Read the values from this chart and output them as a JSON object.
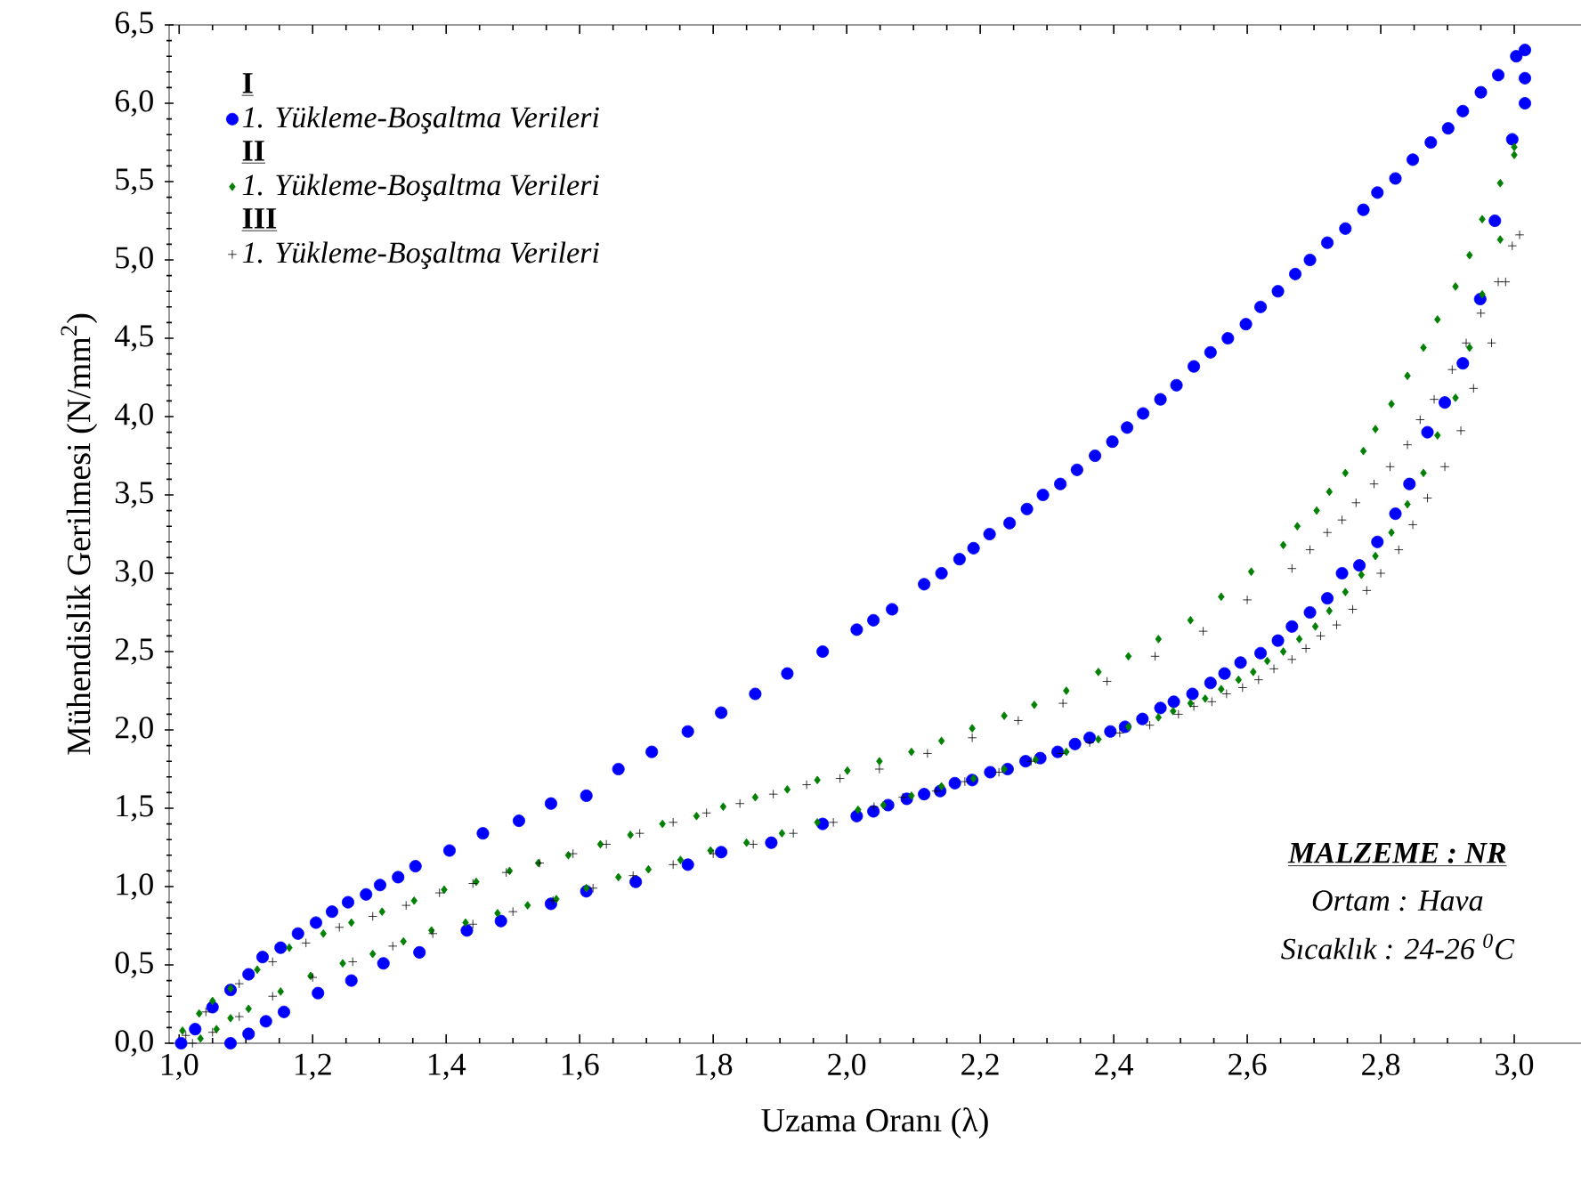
{
  "chart_data": {
    "type": "scatter",
    "xlabel": "Uzama Oranı (λ)",
    "ylabel": "Mühendislik Gerilmesi (N/mm$^{2}$)",
    "xlim": [
      0.985,
      3.1
    ],
    "ylim": [
      0,
      6.5
    ],
    "xticks": [
      {
        "value": 1.0,
        "label": "1,0"
      },
      {
        "value": 1.2,
        "label": "1,2"
      },
      {
        "value": 1.4,
        "label": "1,4"
      },
      {
        "value": 1.6,
        "label": "1,6"
      },
      {
        "value": 1.8,
        "label": "1,8"
      },
      {
        "value": 2.0,
        "label": "2,0"
      },
      {
        "value": 2.2,
        "label": "2,2"
      },
      {
        "value": 2.4,
        "label": "2,4"
      },
      {
        "value": 2.6,
        "label": "2,6"
      },
      {
        "value": 2.8,
        "label": "2,8"
      },
      {
        "value": 3.0,
        "label": "3,0"
      }
    ],
    "yticks": [
      {
        "value": 0,
        "label": "0,0"
      },
      {
        "value": 0.5,
        "label": "0,5"
      },
      {
        "value": 1.0,
        "label": "1,0"
      },
      {
        "value": 1.5,
        "label": "1,5"
      },
      {
        "value": 2.0,
        "label": "2,0"
      },
      {
        "value": 2.5,
        "label": "2,5"
      },
      {
        "value": 3.0,
        "label": "3,0"
      },
      {
        "value": 3.5,
        "label": "3,5"
      },
      {
        "value": 4.0,
        "label": "4,0"
      },
      {
        "value": 4.5,
        "label": "4,5"
      },
      {
        "value": 5.0,
        "label": "5,0"
      },
      {
        "value": 5.5,
        "label": "5,5"
      },
      {
        "value": 6.0,
        "label": "6,0"
      },
      {
        "value": 6.5,
        "label": "6,5"
      }
    ],
    "legend": "top left",
    "annotations": [
      "I",
      "II",
      "III",
      "MALZEME : NR",
      "Ortam : Hava",
      "Sıcaklık : 24-26 $^{0}$C"
    ],
    "series": [
      {
        "name": "1. Yükleme-Boşaltma Verileri",
        "color": "#0000ff",
        "marker": "circle",
        "x": [
          1.003,
          1.024,
          1.05,
          1.077,
          1.104,
          1.125,
          1.152,
          1.178,
          1.205,
          1.229,
          1.253,
          1.28,
          1.301,
          1.328,
          1.354,
          1.405,
          1.455,
          1.509,
          1.557,
          1.61,
          1.658,
          1.708,
          1.762,
          1.812,
          1.863,
          1.911,
          1.964,
          2.015,
          2.04,
          2.068,
          2.116,
          2.142,
          2.169,
          2.19,
          2.214,
          2.244,
          2.27,
          2.294,
          2.32,
          2.345,
          2.372,
          2.398,
          2.42,
          2.444,
          2.47,
          2.494,
          2.52,
          2.545,
          2.571,
          2.598,
          2.62,
          2.646,
          2.672,
          2.694,
          2.72,
          2.747,
          2.774,
          2.795,
          2.822,
          2.848,
          2.875,
          2.901,
          2.923,
          2.95,
          2.976,
          3.003,
          3.016,
          3.016,
          3.016,
          2.997,
          2.971,
          2.949,
          2.923,
          2.896,
          2.87,
          2.843,
          2.822,
          2.795,
          2.768,
          2.742,
          2.72,
          2.694,
          2.667,
          2.646,
          2.62,
          2.59,
          2.566,
          2.545,
          2.518,
          2.49,
          2.47,
          2.443,
          2.417,
          2.395,
          2.364,
          2.342,
          2.316,
          2.29,
          2.268,
          2.241,
          2.215,
          2.188,
          2.162,
          2.14,
          2.116,
          2.09,
          2.062,
          2.04,
          2.015,
          1.964,
          1.887,
          1.812,
          1.762,
          1.684,
          1.61,
          1.557,
          1.482,
          1.431,
          1.36,
          1.306,
          1.258,
          1.208,
          1.157,
          1.13,
          1.104,
          1.077
        ],
        "values": [
          0,
          0.09,
          0.23,
          0.34,
          0.44,
          0.55,
          0.61,
          0.7,
          0.77,
          0.84,
          0.9,
          0.95,
          1.01,
          1.06,
          1.13,
          1.23,
          1.34,
          1.42,
          1.53,
          1.58,
          1.75,
          1.86,
          1.99,
          2.11,
          2.23,
          2.36,
          2.5,
          2.64,
          2.7,
          2.77,
          2.93,
          3.0,
          3.09,
          3.16,
          3.25,
          3.32,
          3.41,
          3.5,
          3.57,
          3.66,
          3.75,
          3.84,
          3.93,
          4.02,
          4.11,
          4.2,
          4.32,
          4.41,
          4.5,
          4.59,
          4.7,
          4.8,
          4.91,
          5.0,
          5.11,
          5.2,
          5.32,
          5.43,
          5.52,
          5.64,
          5.75,
          5.84,
          5.95,
          6.07,
          6.18,
          6.3,
          6.34,
          6.16,
          6.0,
          5.77,
          5.25,
          4.75,
          4.34,
          4.09,
          3.9,
          3.57,
          3.38,
          3.2,
          3.05,
          3.0,
          2.84,
          2.75,
          2.66,
          2.57,
          2.49,
          2.43,
          2.36,
          2.3,
          2.23,
          2.18,
          2.14,
          2.07,
          2.02,
          1.99,
          1.95,
          1.91,
          1.86,
          1.82,
          1.8,
          1.75,
          1.73,
          1.68,
          1.66,
          1.61,
          1.59,
          1.56,
          1.52,
          1.48,
          1.45,
          1.4,
          1.28,
          1.22,
          1.14,
          1.03,
          0.97,
          0.89,
          0.78,
          0.72,
          0.58,
          0.51,
          0.4,
          0.32,
          0.2,
          0.14,
          0.06,
          0
        ]
      },
      {
        "name": "1. Yükleme-Boşaltma Verileri",
        "color": "#008000",
        "marker": "diamond",
        "x": [
          1.005,
          1.03,
          1.05,
          1.077,
          1.117,
          1.165,
          1.216,
          1.258,
          1.304,
          1.352,
          1.397,
          1.445,
          1.495,
          1.538,
          1.583,
          1.631,
          1.676,
          1.724,
          1.775,
          1.815,
          1.863,
          1.911,
          1.956,
          2.001,
          2.049,
          2.097,
          2.142,
          2.188,
          2.236,
          2.281,
          2.329,
          2.377,
          2.422,
          2.467,
          2.515,
          2.561,
          2.606,
          2.654,
          2.675,
          2.704,
          2.723,
          2.747,
          2.774,
          2.792,
          2.816,
          2.84,
          2.864,
          2.885,
          2.912,
          2.933,
          2.952,
          2.979,
          3.0,
          3.0,
          2.979,
          2.952,
          2.933,
          2.912,
          2.885,
          2.864,
          2.84,
          2.816,
          2.792,
          2.771,
          2.747,
          2.723,
          2.702,
          2.678,
          2.654,
          2.63,
          2.609,
          2.587,
          2.561,
          2.537,
          2.515,
          2.489,
          2.467,
          2.422,
          2.377,
          2.329,
          2.283,
          2.236,
          2.19,
          2.142,
          2.097,
          2.055,
          2.017,
          1.956,
          1.903,
          1.85,
          1.796,
          1.751,
          1.703,
          1.658,
          1.61,
          1.565,
          1.522,
          1.477,
          1.429,
          1.378,
          1.336,
          1.29,
          1.245,
          1.197,
          1.152,
          1.104,
          1.077,
          1.056,
          1.032
        ],
        "values": [
          0.08,
          0.19,
          0.27,
          0.35,
          0.47,
          0.61,
          0.7,
          0.77,
          0.84,
          0.91,
          0.98,
          1.03,
          1.1,
          1.15,
          1.2,
          1.27,
          1.33,
          1.4,
          1.45,
          1.51,
          1.57,
          1.62,
          1.68,
          1.74,
          1.8,
          1.86,
          1.93,
          2.01,
          2.09,
          2.16,
          2.25,
          2.37,
          2.47,
          2.58,
          2.7,
          2.85,
          3.01,
          3.18,
          3.3,
          3.4,
          3.52,
          3.64,
          3.78,
          3.92,
          4.08,
          4.26,
          4.44,
          4.62,
          4.83,
          5.03,
          5.26,
          5.49,
          5.67,
          5.72,
          5.13,
          4.78,
          4.44,
          4.12,
          3.88,
          3.64,
          3.44,
          3.26,
          3.11,
          2.99,
          2.88,
          2.76,
          2.66,
          2.58,
          2.5,
          2.44,
          2.37,
          2.32,
          2.26,
          2.2,
          2.17,
          2.12,
          2.08,
          2.02,
          1.94,
          1.86,
          1.81,
          1.75,
          1.69,
          1.64,
          1.58,
          1.52,
          1.49,
          1.41,
          1.34,
          1.28,
          1.23,
          1.17,
          1.11,
          1.06,
          0.99,
          0.92,
          0.88,
          0.83,
          0.77,
          0.72,
          0.65,
          0.57,
          0.51,
          0.43,
          0.33,
          0.22,
          0.16,
          0.09,
          0.03
        ]
      },
      {
        "name": "1. Yükleme-Boşaltma Verileri",
        "color": "#000000",
        "marker": "cross",
        "x": [
          1.01,
          1.04,
          1.09,
          1.14,
          1.19,
          1.24,
          1.29,
          1.34,
          1.39,
          1.44,
          1.49,
          1.54,
          1.59,
          1.64,
          1.69,
          1.74,
          1.79,
          1.84,
          1.89,
          1.94,
          1.99,
          2.049,
          2.121,
          2.188,
          2.257,
          2.324,
          2.39,
          2.462,
          2.534,
          2.6,
          2.667,
          2.694,
          2.72,
          2.742,
          2.763,
          2.79,
          2.814,
          2.84,
          2.859,
          2.88,
          2.907,
          2.928,
          2.95,
          2.976,
          2.997,
          3.008,
          2.987,
          2.966,
          2.939,
          2.92,
          2.896,
          2.87,
          2.848,
          2.827,
          2.8,
          2.779,
          2.758,
          2.734,
          2.71,
          2.688,
          2.667,
          2.64,
          2.617,
          2.593,
          2.569,
          2.547,
          2.52,
          2.497,
          2.454,
          2.409,
          2.364,
          2.321,
          2.276,
          2.228,
          2.177,
          2.134,
          2.084,
          2.041,
          1.98,
          1.92,
          1.86,
          1.8,
          1.74,
          1.68,
          1.62,
          1.56,
          1.5,
          1.44,
          1.38,
          1.32,
          1.26,
          1.2,
          1.14,
          1.09,
          1.05,
          1.02
        ],
        "values": [
          0.05,
          0.2,
          0.38,
          0.52,
          0.64,
          0.74,
          0.81,
          0.88,
          0.96,
          1.02,
          1.09,
          1.15,
          1.21,
          1.27,
          1.34,
          1.41,
          1.47,
          1.53,
          1.59,
          1.65,
          1.69,
          1.75,
          1.85,
          1.95,
          2.06,
          2.17,
          2.31,
          2.47,
          2.63,
          2.83,
          3.03,
          3.15,
          3.26,
          3.34,
          3.45,
          3.57,
          3.68,
          3.82,
          3.98,
          4.11,
          4.3,
          4.47,
          4.66,
          4.86,
          5.09,
          5.16,
          4.86,
          4.47,
          4.18,
          3.91,
          3.68,
          3.48,
          3.31,
          3.15,
          3.0,
          2.89,
          2.77,
          2.67,
          2.6,
          2.52,
          2.45,
          2.39,
          2.32,
          2.27,
          2.23,
          2.18,
          2.15,
          2.1,
          2.03,
          1.98,
          1.92,
          1.85,
          1.8,
          1.73,
          1.67,
          1.61,
          1.57,
          1.51,
          1.41,
          1.34,
          1.27,
          1.21,
          1.14,
          1.07,
          0.99,
          0.91,
          0.84,
          0.76,
          0.7,
          0.62,
          0.52,
          0.42,
          0.3,
          0.17,
          0.07,
          0.0
        ]
      }
    ]
  }
}
